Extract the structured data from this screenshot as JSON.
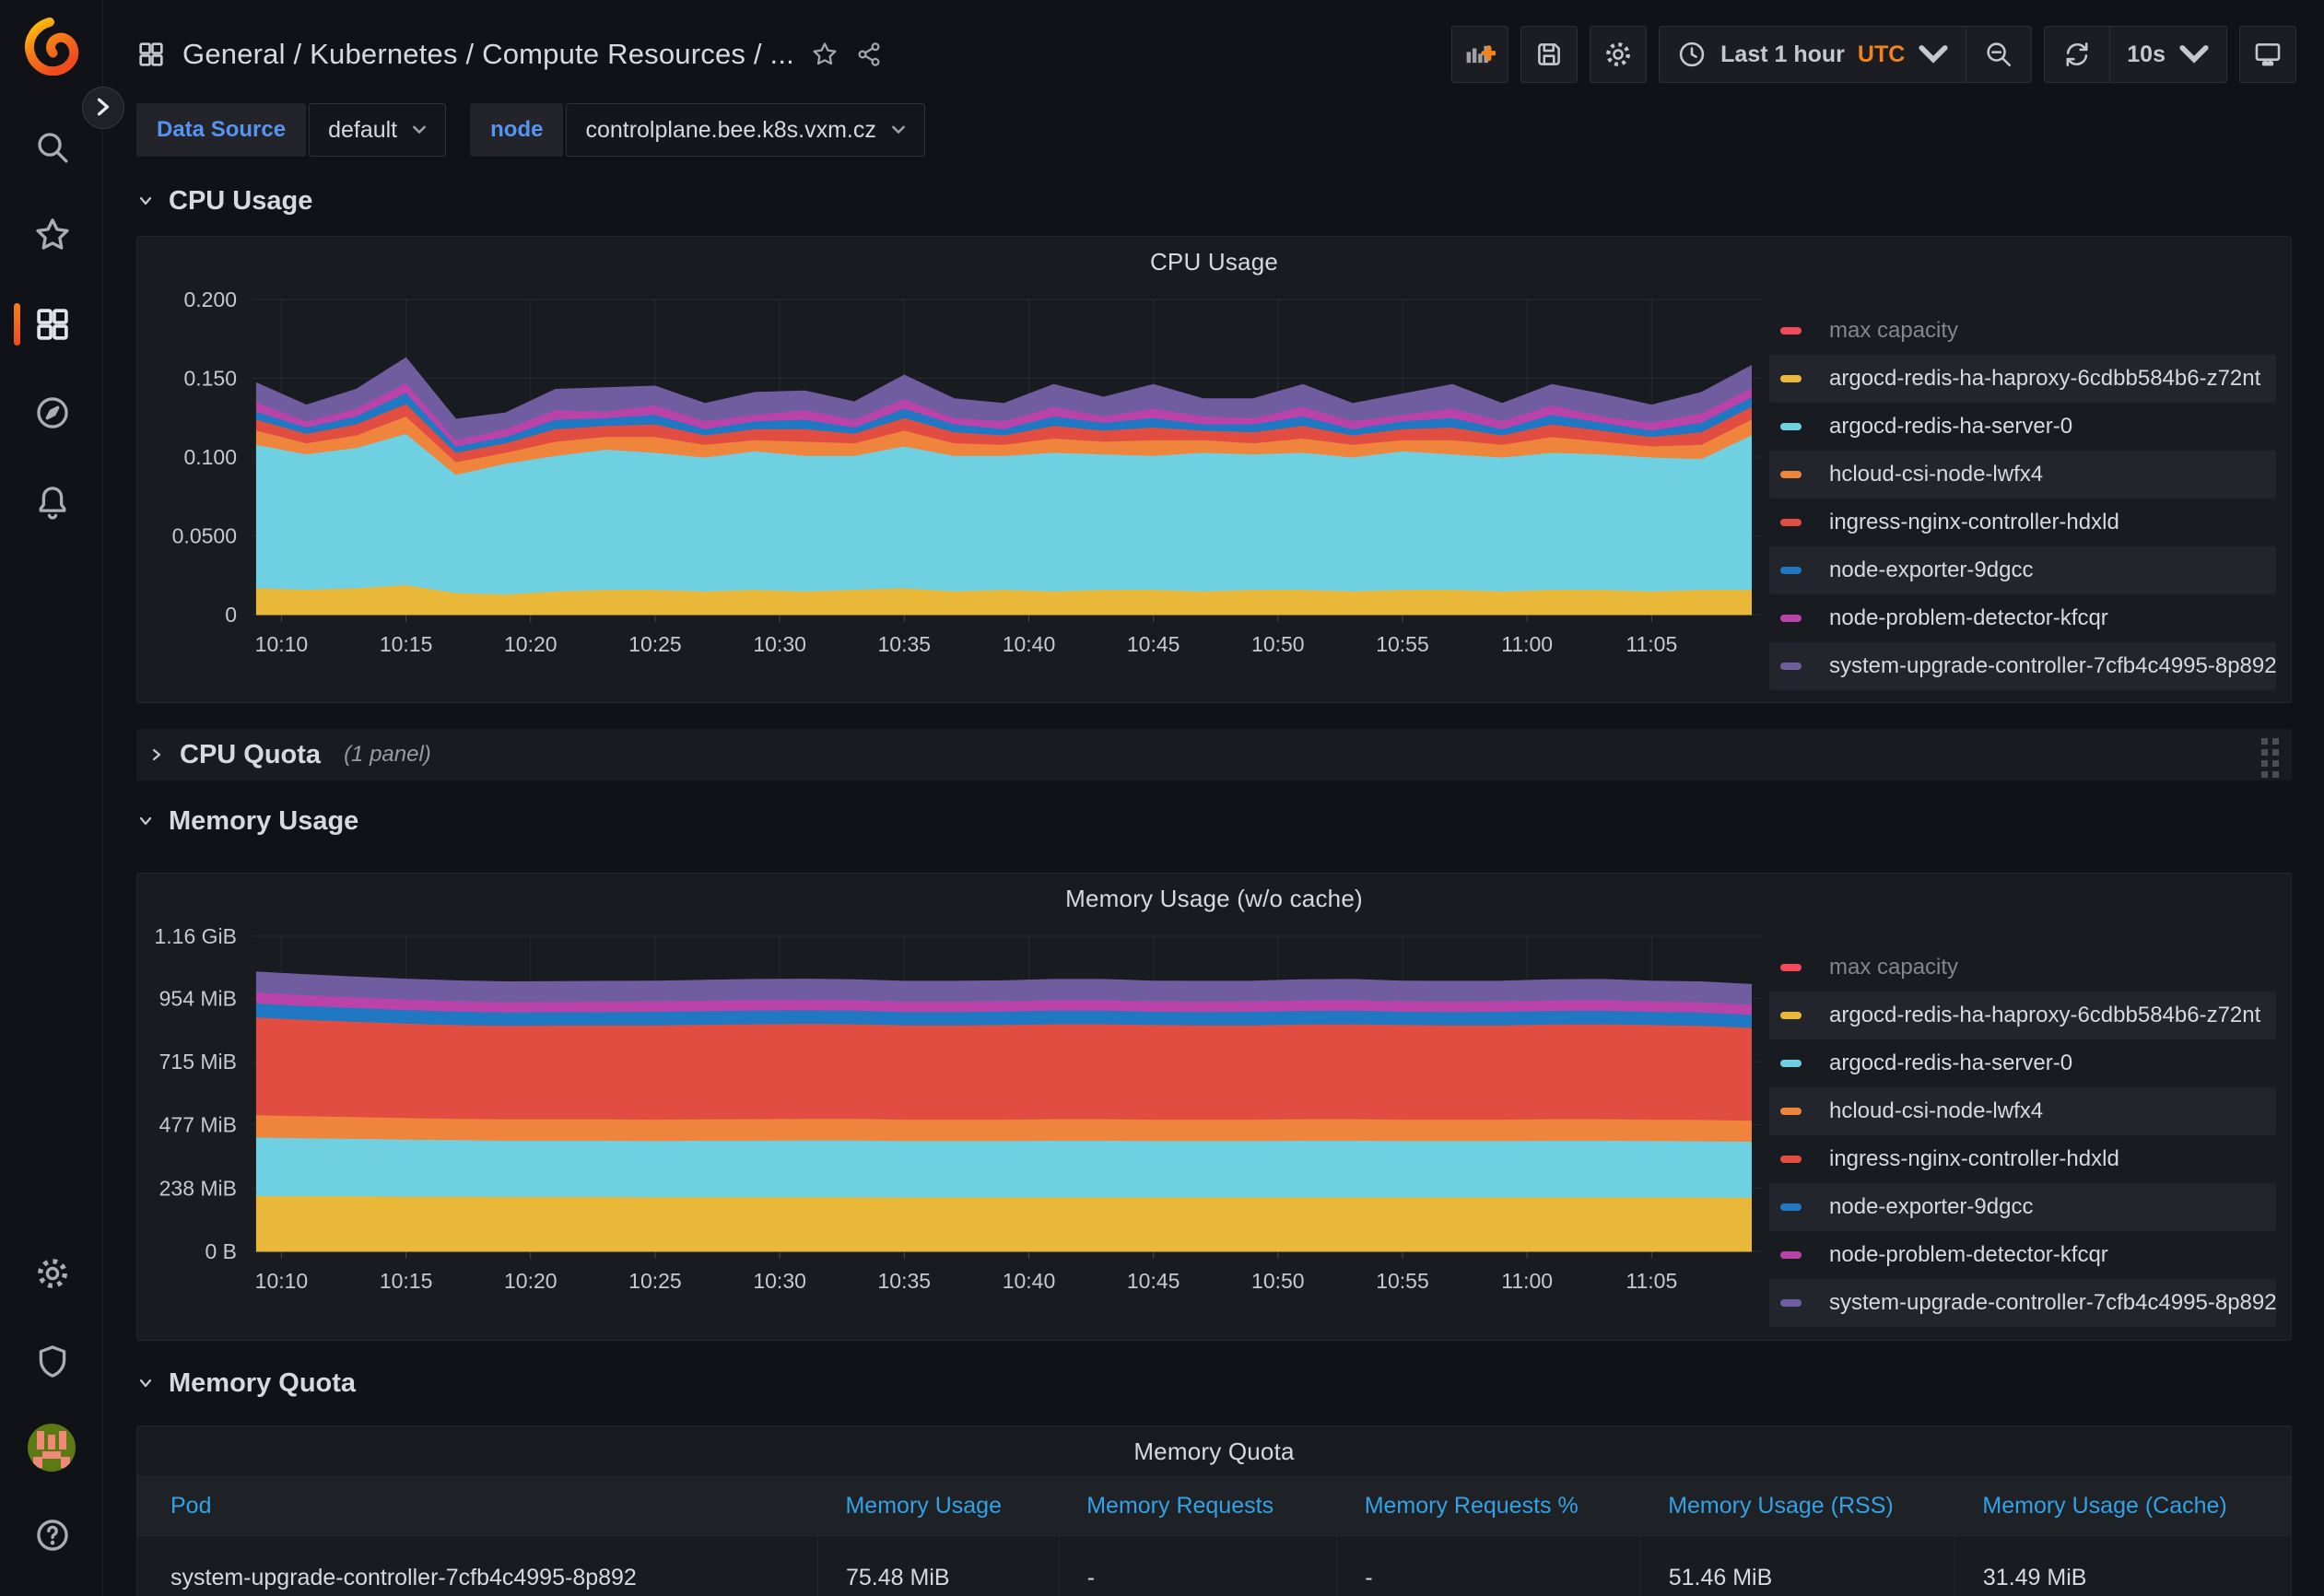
{
  "header": {
    "breadcrumb": "General / Kubernetes / Compute Resources / ...",
    "time_range": "Last 1 hour",
    "timezone": "UTC",
    "refresh_interval": "10s"
  },
  "submenu": {
    "datasource_label": "Data Source",
    "datasource_value": "default",
    "node_label": "node",
    "node_value": "controlplane.bee.k8s.vxm.cz"
  },
  "sections": {
    "cpu_usage": {
      "title": "CPU Usage"
    },
    "cpu_quota": {
      "title": "CPU Quota",
      "panel_count": "(1 panel)"
    },
    "memory_usage": {
      "title": "Memory Usage"
    },
    "memory_quota": {
      "title": "Memory Quota"
    }
  },
  "colors": {
    "accent_orange": "#F2821A",
    "link_blue": "#33A2E5",
    "variable_blue": "#5794F2"
  },
  "table": {
    "title": "Memory Quota",
    "columns": [
      "Pod",
      "Memory Usage",
      "Memory Requests",
      "Memory Requests %",
      "Memory Usage (RSS)",
      "Memory Usage (Cache)"
    ],
    "col_widths": [
      "31.6%",
      "11.2%",
      "12.9%",
      "14.1%",
      "14.6%",
      "15.6%"
    ],
    "rows": [
      [
        "system-upgrade-controller-7cfb4c4995-8p892",
        "75.48 MiB",
        "-",
        "-",
        "51.46 MiB",
        "31.49 MiB"
      ]
    ]
  },
  "chart_data": [
    {
      "type": "area",
      "name": "cpu-usage",
      "title": "CPU Usage",
      "stacked": true,
      "legend_position": "right",
      "grid": true,
      "x_domain": [
        608.8,
        669.5
      ],
      "x_start": 609,
      "x_step": 2,
      "x_ticks": {
        "minutes": [
          610,
          615,
          620,
          625,
          630,
          635,
          640,
          645,
          650,
          655,
          660,
          665
        ],
        "labels": [
          "10:10",
          "10:15",
          "10:20",
          "10:25",
          "10:30",
          "10:35",
          "10:40",
          "10:45",
          "10:50",
          "10:55",
          "11:00",
          "11:05"
        ]
      },
      "y_max": 0.2,
      "y_ticks": {
        "values": [
          0,
          0.05,
          0.1,
          0.15,
          0.2
        ],
        "labels": [
          "0",
          "0.0500",
          "0.100",
          "0.150",
          "0.200"
        ]
      },
      "legend": [
        {
          "name": "max capacity",
          "color": "#F2495C",
          "hidden": true
        },
        {
          "name": "argocd-redis-ha-haproxy-6cdbb584b6-z72nt",
          "color": "#EAB839",
          "hidden": false
        },
        {
          "name": "argocd-redis-ha-server-0",
          "color": "#6ED0E0",
          "hidden": false
        },
        {
          "name": "hcloud-csi-node-lwfx4",
          "color": "#EF843C",
          "hidden": false
        },
        {
          "name": "ingress-nginx-controller-hdxld",
          "color": "#E24D42",
          "hidden": false
        },
        {
          "name": "node-exporter-9dgcc",
          "color": "#1F78C1",
          "hidden": false
        },
        {
          "name": "node-problem-detector-kfcqr",
          "color": "#BA43A9",
          "hidden": false
        },
        {
          "name": "system-upgrade-controller-7cfb4c4995-8p892",
          "color": "#705DA0",
          "hidden": false
        }
      ],
      "series": [
        {
          "name": "argocd-redis-ha-haproxy-6cdbb584b6-z72nt",
          "color": "#EAB839",
          "values": [
            0.017,
            0.016,
            0.017,
            0.019,
            0.014,
            0.013,
            0.015,
            0.016,
            0.016,
            0.015,
            0.016,
            0.015,
            0.016,
            0.017,
            0.015,
            0.016,
            0.015,
            0.016,
            0.016,
            0.015,
            0.016,
            0.016,
            0.015,
            0.016,
            0.016,
            0.015,
            0.016,
            0.016,
            0.015,
            0.016,
            0.016
          ]
        },
        {
          "name": "argocd-redis-ha-server-0",
          "color": "#6ED0E0",
          "values": [
            0.091,
            0.086,
            0.089,
            0.096,
            0.075,
            0.083,
            0.086,
            0.089,
            0.087,
            0.085,
            0.088,
            0.086,
            0.085,
            0.09,
            0.086,
            0.085,
            0.088,
            0.086,
            0.085,
            0.088,
            0.086,
            0.087,
            0.085,
            0.088,
            0.086,
            0.085,
            0.087,
            0.086,
            0.085,
            0.083,
            0.098
          ]
        },
        {
          "name": "hcloud-csi-node-lwfx4",
          "color": "#EF843C",
          "values": [
            0.009,
            0.007,
            0.008,
            0.011,
            0.008,
            0.007,
            0.009,
            0.008,
            0.01,
            0.008,
            0.007,
            0.009,
            0.008,
            0.01,
            0.008,
            0.007,
            0.009,
            0.008,
            0.01,
            0.008,
            0.007,
            0.009,
            0.008,
            0.007,
            0.009,
            0.008,
            0.01,
            0.008,
            0.007,
            0.009,
            0.01
          ]
        },
        {
          "name": "ingress-nginx-controller-hdxld",
          "color": "#E24D42",
          "values": [
            0.007,
            0.006,
            0.007,
            0.008,
            0.006,
            0.006,
            0.008,
            0.007,
            0.008,
            0.006,
            0.007,
            0.008,
            0.006,
            0.008,
            0.007,
            0.006,
            0.008,
            0.007,
            0.008,
            0.006,
            0.007,
            0.008,
            0.006,
            0.007,
            0.008,
            0.006,
            0.008,
            0.007,
            0.006,
            0.008,
            0.008
          ]
        },
        {
          "name": "node-exporter-9dgcc",
          "color": "#1F78C1",
          "values": [
            0.005,
            0.004,
            0.005,
            0.007,
            0.004,
            0.004,
            0.006,
            0.005,
            0.006,
            0.004,
            0.005,
            0.006,
            0.004,
            0.006,
            0.005,
            0.004,
            0.006,
            0.005,
            0.006,
            0.004,
            0.005,
            0.006,
            0.004,
            0.005,
            0.006,
            0.004,
            0.006,
            0.005,
            0.004,
            0.006,
            0.006
          ]
        },
        {
          "name": "node-problem-detector-kfcqr",
          "color": "#BA43A9",
          "values": [
            0.006,
            0.004,
            0.005,
            0.006,
            0.004,
            0.005,
            0.006,
            0.004,
            0.006,
            0.005,
            0.004,
            0.006,
            0.005,
            0.006,
            0.004,
            0.005,
            0.006,
            0.004,
            0.006,
            0.005,
            0.004,
            0.006,
            0.005,
            0.004,
            0.006,
            0.005,
            0.006,
            0.004,
            0.005,
            0.006,
            0.006
          ]
        },
        {
          "name": "system-upgrade-controller-7cfb4c4995-8p892",
          "color": "#705DA0",
          "values": [
            0.012,
            0.01,
            0.012,
            0.016,
            0.013,
            0.01,
            0.013,
            0.015,
            0.012,
            0.011,
            0.014,
            0.012,
            0.011,
            0.015,
            0.012,
            0.011,
            0.014,
            0.012,
            0.015,
            0.011,
            0.012,
            0.014,
            0.011,
            0.013,
            0.015,
            0.011,
            0.013,
            0.014,
            0.011,
            0.013,
            0.014
          ]
        }
      ]
    },
    {
      "type": "area",
      "name": "memory-usage",
      "title": "Memory Usage (w/o cache)",
      "stacked": true,
      "legend_position": "right",
      "grid": true,
      "unit": "MiB",
      "x_domain": [
        608.8,
        669.5
      ],
      "x_start": 609,
      "x_step": 2,
      "x_ticks": {
        "minutes": [
          610,
          615,
          620,
          625,
          630,
          635,
          640,
          645,
          650,
          655,
          660,
          665
        ],
        "labels": [
          "10:10",
          "10:15",
          "10:20",
          "10:25",
          "10:30",
          "10:35",
          "10:40",
          "10:45",
          "10:50",
          "10:55",
          "11:00",
          "11:05"
        ]
      },
      "y_max": 1188,
      "y_ticks": {
        "values": [
          0,
          238,
          477,
          715,
          954,
          1188
        ],
        "labels": [
          "0 B",
          "238 MiB",
          "477 MiB",
          "715 MiB",
          "954 MiB",
          "1.16 GiB"
        ]
      },
      "legend": [
        {
          "name": "max capacity",
          "color": "#F2495C",
          "hidden": true
        },
        {
          "name": "argocd-redis-ha-haproxy-6cdbb584b6-z72nt",
          "color": "#EAB839",
          "hidden": false
        },
        {
          "name": "argocd-redis-ha-server-0",
          "color": "#6ED0E0",
          "hidden": false
        },
        {
          "name": "hcloud-csi-node-lwfx4",
          "color": "#EF843C",
          "hidden": false
        },
        {
          "name": "ingress-nginx-controller-hdxld",
          "color": "#E24D42",
          "hidden": false
        },
        {
          "name": "node-exporter-9dgcc",
          "color": "#1F78C1",
          "hidden": false
        },
        {
          "name": "node-problem-detector-kfcqr",
          "color": "#BA43A9",
          "hidden": false
        },
        {
          "name": "system-upgrade-controller-7cfb4c4995-8p892",
          "color": "#705DA0",
          "hidden": false
        }
      ],
      "series": [
        {
          "name": "argocd-redis-ha-haproxy-6cdbb584b6-z72nt",
          "color": "#EAB839",
          "values": [
            210,
            209,
            209,
            208,
            208,
            207,
            207,
            207,
            206,
            206,
            206,
            206,
            206,
            205,
            205,
            205,
            205,
            205,
            205,
            205,
            205,
            205,
            205,
            205,
            205,
            205,
            205,
            205,
            205,
            205,
            204
          ]
        },
        {
          "name": "argocd-redis-ha-server-0",
          "color": "#6ED0E0",
          "values": [
            221,
            219,
            217,
            215,
            213,
            212,
            212,
            212,
            212,
            213,
            213,
            214,
            214,
            213,
            213,
            213,
            214,
            214,
            213,
            213,
            213,
            214,
            214,
            213,
            213,
            213,
            214,
            214,
            213,
            212,
            211
          ]
        },
        {
          "name": "hcloud-csi-node-lwfx4",
          "color": "#EF843C",
          "values": [
            84,
            83,
            82,
            81,
            80,
            80,
            80,
            80,
            80,
            80,
            81,
            81,
            81,
            80,
            80,
            80,
            81,
            81,
            80,
            80,
            80,
            81,
            81,
            80,
            80,
            80,
            81,
            81,
            80,
            80,
            79
          ]
        },
        {
          "name": "ingress-nginx-controller-hdxld",
          "color": "#E24D42",
          "values": [
            368,
            363,
            359,
            356,
            354,
            353,
            354,
            355,
            356,
            357,
            358,
            358,
            357,
            356,
            356,
            357,
            358,
            358,
            357,
            356,
            356,
            357,
            358,
            357,
            356,
            356,
            357,
            358,
            357,
            355,
            350
          ]
        },
        {
          "name": "node-exporter-9dgcc",
          "color": "#1F78C1",
          "values": [
            53,
            52,
            52,
            51,
            51,
            50,
            50,
            50,
            51,
            51,
            51,
            51,
            51,
            50,
            50,
            51,
            51,
            51,
            50,
            50,
            51,
            51,
            51,
            50,
            50,
            51,
            51,
            51,
            50,
            50,
            49
          ]
        },
        {
          "name": "node-problem-detector-kfcqr",
          "color": "#BA43A9",
          "values": [
            41,
            41,
            40,
            40,
            39,
            39,
            39,
            39,
            39,
            40,
            40,
            40,
            40,
            39,
            39,
            39,
            40,
            40,
            39,
            39,
            39,
            40,
            40,
            39,
            39,
            39,
            40,
            40,
            39,
            39,
            38
          ]
        },
        {
          "name": "system-upgrade-controller-7cfb4c4995-8p892",
          "color": "#705DA0",
          "values": [
            76,
            76,
            75,
            75,
            75,
            75,
            75,
            75,
            75,
            75,
            76,
            76,
            75,
            75,
            75,
            75,
            76,
            76,
            75,
            75,
            75,
            76,
            76,
            75,
            75,
            75,
            76,
            76,
            75,
            75,
            75
          ]
        }
      ]
    }
  ]
}
